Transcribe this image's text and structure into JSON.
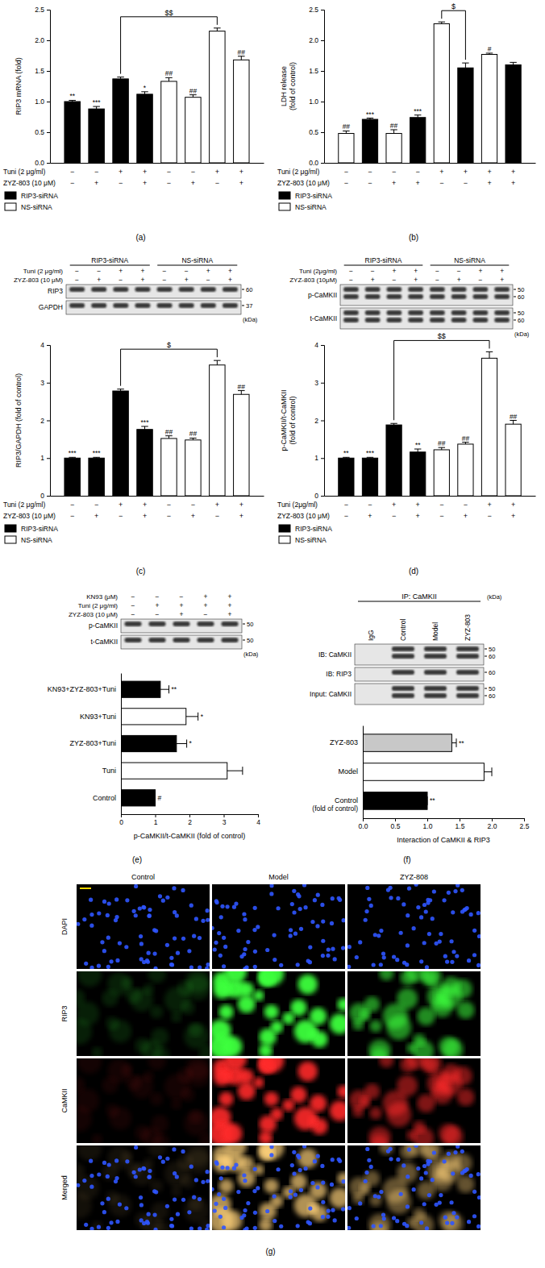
{
  "chart_data": [
    {
      "type": "bar",
      "title": "(a)",
      "y_label": [
        "RIP3 mRNA (fold)"
      ],
      "categories": [
        null,
        null,
        null,
        null,
        null,
        null,
        null,
        null
      ],
      "ylim": [
        0,
        2.5
      ],
      "yticks": [
        {
          "value": 0,
          "label": "0.0"
        },
        0.5,
        {
          "value": 1,
          "label": "1.0"
        },
        1.5,
        {
          "value": 2,
          "label": "2.0"
        },
        2.5
      ],
      "series": [
        {
          "name": "RIP3-siRNA",
          "color": "#000000",
          "values": [
            1,
            0.88,
            1.37,
            1.12,
            null,
            null,
            null,
            null
          ],
          "errors": [
            0.02,
            0.04,
            0.03,
            0.04,
            null,
            null,
            null,
            null
          ],
          "significance": [
            "**",
            "***",
            null,
            "*",
            null,
            null,
            null,
            null
          ]
        },
        {
          "name": "NS-siRNA",
          "color": "#ffffff",
          "values": [
            null,
            null,
            null,
            null,
            1.33,
            1.07,
            2.15,
            1.68
          ],
          "errors": [
            null,
            null,
            null,
            null,
            0.06,
            0.04,
            0.05,
            0.06
          ],
          "significance": [
            null,
            null,
            null,
            null,
            "##",
            "##",
            null,
            "##"
          ]
        }
      ],
      "conditions": [
        {
          "label": "Tuni (2 μg/ml)",
          "signs": [
            "−",
            "−",
            "+",
            "+",
            "−",
            "−",
            "+",
            "+"
          ]
        },
        {
          "label": "ZYZ-803 (10 μM)",
          "signs": [
            "−",
            "+",
            "−",
            "+",
            "−",
            "+",
            "−",
            "+"
          ]
        }
      ],
      "comparisons": [
        {
          "from": 2,
          "to": 6,
          "label": "$$"
        }
      ],
      "legend": "bottom left"
    },
    {
      "type": "bar",
      "title": "(b)",
      "y_label": [
        "LDH release",
        "(fold of control)"
      ],
      "categories": [
        null,
        null,
        null,
        null,
        null,
        null,
        null,
        null
      ],
      "ylim": [
        0,
        2.5
      ],
      "yticks": [
        {
          "value": 0,
          "label": "0.0"
        },
        0.5,
        {
          "value": 1,
          "label": "1.0"
        },
        1.5,
        {
          "value": 2,
          "label": "2.0"
        },
        2.5
      ],
      "series": [
        {
          "name": "RIP3-siRNA",
          "color": "#000000",
          "values": [
            null,
            0.71,
            null,
            0.74,
            null,
            1.55,
            null,
            1.6
          ],
          "errors": [
            null,
            0.02,
            null,
            0.04,
            null,
            0.08,
            null,
            0.04
          ],
          "significance": [
            null,
            "***",
            null,
            "***",
            null,
            null,
            null,
            null
          ]
        },
        {
          "name": "NS-siRNA",
          "color": "#ffffff",
          "values": [
            0.48,
            null,
            0.48,
            null,
            2.27,
            null,
            1.77,
            null
          ],
          "errors": [
            0.04,
            null,
            0.06,
            null,
            0.03,
            null,
            0.02,
            null
          ],
          "significance": [
            "##",
            null,
            "##",
            null,
            null,
            null,
            "#",
            null
          ]
        }
      ],
      "conditions": [
        {
          "label": "Tuni (2 μg/ml)",
          "signs": [
            "−",
            "−",
            "−",
            "−",
            "+",
            "+",
            "+",
            "+"
          ]
        },
        {
          "label": "ZYZ-803 (10 μM)",
          "signs": [
            "−",
            "−",
            "+",
            "+",
            "−",
            "−",
            "+",
            "+"
          ]
        }
      ],
      "comparisons": [
        {
          "from": 4,
          "to": 5,
          "label": "$"
        }
      ],
      "legend": "bottom left"
    },
    {
      "type": "bar",
      "title": "(c)",
      "y_label": [
        "RIP3/GAPDH (fold of control)"
      ],
      "categories": [
        null,
        null,
        null,
        null,
        null,
        null,
        null,
        null
      ],
      "ylim": [
        0,
        4
      ],
      "yticks": [
        0,
        1,
        2,
        3,
        4
      ],
      "series": [
        {
          "name": "RIP3-siRNA",
          "color": "#000000",
          "values": [
            1,
            1,
            2.78,
            1.76,
            null,
            null,
            null,
            null
          ],
          "errors": [
            0.02,
            0.02,
            0.05,
            0.08,
            null,
            null,
            null,
            null
          ],
          "significance": [
            "***",
            "***",
            null,
            "***",
            null,
            null,
            null,
            null
          ]
        },
        {
          "name": "NS-siRNA",
          "color": "#ffffff",
          "values": [
            null,
            null,
            null,
            null,
            1.52,
            1.48,
            3.47,
            2.69
          ],
          "errors": [
            null,
            null,
            null,
            null,
            0.07,
            0.05,
            0.12,
            0.1
          ],
          "significance": [
            null,
            null,
            null,
            null,
            "##",
            "##",
            null,
            "##"
          ]
        }
      ],
      "conditions": [
        {
          "label": "Tuni (2 μg/ml)",
          "signs": [
            "−",
            "−",
            "+",
            "+",
            "−",
            "−",
            "+",
            "+"
          ]
        },
        {
          "label": "ZYZ-803 (10 μM)",
          "signs": [
            "−",
            "+",
            "−",
            "+",
            "−",
            "+",
            "−",
            "+"
          ]
        }
      ],
      "comparisons": [
        {
          "from": 2,
          "to": 6,
          "label": "$"
        }
      ],
      "legend": "bottom left"
    },
    {
      "type": "bar",
      "title": "(d)",
      "y_label": [
        "p-CaMKII/t-CaMKII",
        "(fold of control)"
      ],
      "categories": [
        null,
        null,
        null,
        null,
        null,
        null,
        null,
        null
      ],
      "ylim": [
        0,
        4
      ],
      "yticks": [
        0,
        1,
        2,
        3,
        4
      ],
      "series": [
        {
          "name": "RIP3-siRNA",
          "color": "#000000",
          "values": [
            1,
            1,
            1.88,
            1.16,
            null,
            null,
            null,
            null
          ],
          "errors": [
            0.02,
            0.02,
            0.04,
            0.08,
            null,
            null,
            null,
            null
          ],
          "significance": [
            "**",
            "***",
            null,
            "**",
            null,
            null,
            null,
            null
          ]
        },
        {
          "name": "NS-siRNA",
          "color": "#ffffff",
          "values": [
            null,
            null,
            null,
            null,
            1.22,
            1.37,
            3.65,
            1.9
          ],
          "errors": [
            null,
            null,
            null,
            null,
            0.06,
            0.05,
            0.17,
            0.1
          ],
          "significance": [
            null,
            null,
            null,
            null,
            "##",
            "##",
            null,
            "##"
          ]
        }
      ],
      "conditions": [
        {
          "label": "Tuni (2μg/ml)",
          "signs": [
            "−",
            "−",
            "+",
            "+",
            "−",
            "−",
            "+",
            "+"
          ]
        },
        {
          "label": "ZYZ-803 (10 μM)",
          "signs": [
            "−",
            "+",
            "−",
            "+",
            "−",
            "+",
            "−",
            "+"
          ]
        }
      ],
      "comparisons": [
        {
          "from": 2,
          "to": 6,
          "label": "$$"
        }
      ],
      "legend": "bottom left"
    },
    {
      "type": "bar",
      "orientation": "horizontal",
      "title": "(e)",
      "x_label": "p-CaMKII/t-CaMKII (fold of control)",
      "categories": [
        "KN93+ZYZ-803+Tuni",
        "KN93+Tuni",
        "ZYZ-803+Tuni",
        "Tuni",
        "Control"
      ],
      "values": [
        1.15,
        1.9,
        1.62,
        3.1,
        1
      ],
      "errors": [
        0.25,
        0.35,
        0.3,
        0.45,
        0
      ],
      "colors": [
        "#000000",
        "#ffffff",
        "#000000",
        "#ffffff",
        "#000000"
      ],
      "significance": [
        "**",
        "*",
        "*",
        null,
        "#"
      ],
      "xlim": [
        0,
        4
      ],
      "xticks": [
        0,
        1,
        2,
        3,
        4
      ]
    },
    {
      "type": "bar",
      "orientation": "horizontal",
      "title": "(f)",
      "x_label": "Interaction of CaMKII & RIP3",
      "y_note": "(fold of control)",
      "categories": [
        "ZYZ-803",
        "Model",
        "Control"
      ],
      "values": [
        1.38,
        1.88,
        1
      ],
      "errors": [
        0.07,
        0.12,
        0
      ],
      "colors": [
        "#c8c8c8",
        "#ffffff",
        "#000000"
      ],
      "significance": [
        "**",
        null,
        "**"
      ],
      "xlim": [
        0,
        2.5
      ],
      "xticks": [
        {
          "value": 0,
          "label": "0.0"
        },
        0.5,
        {
          "value": 1,
          "label": "1.0"
        },
        1.5,
        {
          "value": 2,
          "label": "2.0"
        },
        2.5
      ]
    }
  ],
  "blots": {
    "c": {
      "groups": [
        "RIP3-siRNA",
        "NS-siRNA"
      ],
      "conditions": [
        {
          "label": "Tuni (2 μg/ml)",
          "signs": [
            "−",
            "−",
            "+",
            "+",
            "−",
            "−",
            "+",
            "+"
          ]
        },
        {
          "label": "ZYZ-803 (10 μM)",
          "signs": [
            "−",
            "+",
            "−",
            "+",
            "−",
            "+",
            "−",
            "+"
          ]
        }
      ],
      "rows": [
        {
          "label": "RIP3",
          "markers": [
            60
          ]
        },
        {
          "label": "GAPDH",
          "markers": [
            37
          ]
        }
      ],
      "unit": "(kDa)"
    },
    "d": {
      "groups": [
        "RIP3-siRNA",
        "NS-siRNA"
      ],
      "conditions": [
        {
          "label": "Tuni (2μg/ml)",
          "signs": [
            "−",
            "−",
            "+",
            "+",
            "−",
            "−",
            "+",
            "+"
          ]
        },
        {
          "label": "ZYZ-803 (10μM)",
          "signs": [
            "−",
            "+",
            "−",
            "+",
            "−",
            "+",
            "−",
            "+"
          ]
        }
      ],
      "rows": [
        {
          "label": "p-CaMKII",
          "markers": [
            50,
            60
          ]
        },
        {
          "label": "t-CaMKII",
          "markers": [
            50,
            60
          ]
        }
      ],
      "unit": "(kDa)"
    },
    "e": {
      "conditions": [
        {
          "label": "KN93 (μM)",
          "signs": [
            "−",
            "−",
            "−",
            "+",
            "+"
          ]
        },
        {
          "label": "Tuni (2 μg/ml)",
          "signs": [
            "−",
            "+",
            "+",
            "+",
            "+"
          ]
        },
        {
          "label": "ZYZ-803 (10 μM)",
          "signs": [
            "−",
            "−",
            "+",
            "−",
            "+"
          ]
        }
      ],
      "rows": [
        {
          "label": "p-CaMKII",
          "markers": [
            50
          ]
        },
        {
          "label": "t-CaMKII",
          "markers": [
            50
          ]
        }
      ],
      "unit": "(kDa)"
    },
    "f": {
      "header": "IP: CaMKII",
      "lanes": [
        "IgG",
        "Control",
        "Model",
        "ZYZ-803"
      ],
      "rows": [
        {
          "label": "IB: CaMKII",
          "markers": [
            50,
            60
          ],
          "present": [
            false,
            true,
            true,
            true
          ]
        },
        {
          "label": "IB: RIP3",
          "markers": [
            60
          ],
          "present": [
            false,
            true,
            true,
            true
          ]
        },
        {
          "label": "Input: CaMKII",
          "markers": [
            50,
            60
          ],
          "present": [
            false,
            true,
            true,
            true
          ]
        }
      ],
      "unit": "(kDa)"
    }
  },
  "images": {
    "title": "(g)",
    "columns": [
      "Control",
      "Model",
      "ZYZ-808"
    ],
    "rows": [
      "DAPI",
      "RIP3",
      "CaMKII",
      "Merged"
    ]
  }
}
